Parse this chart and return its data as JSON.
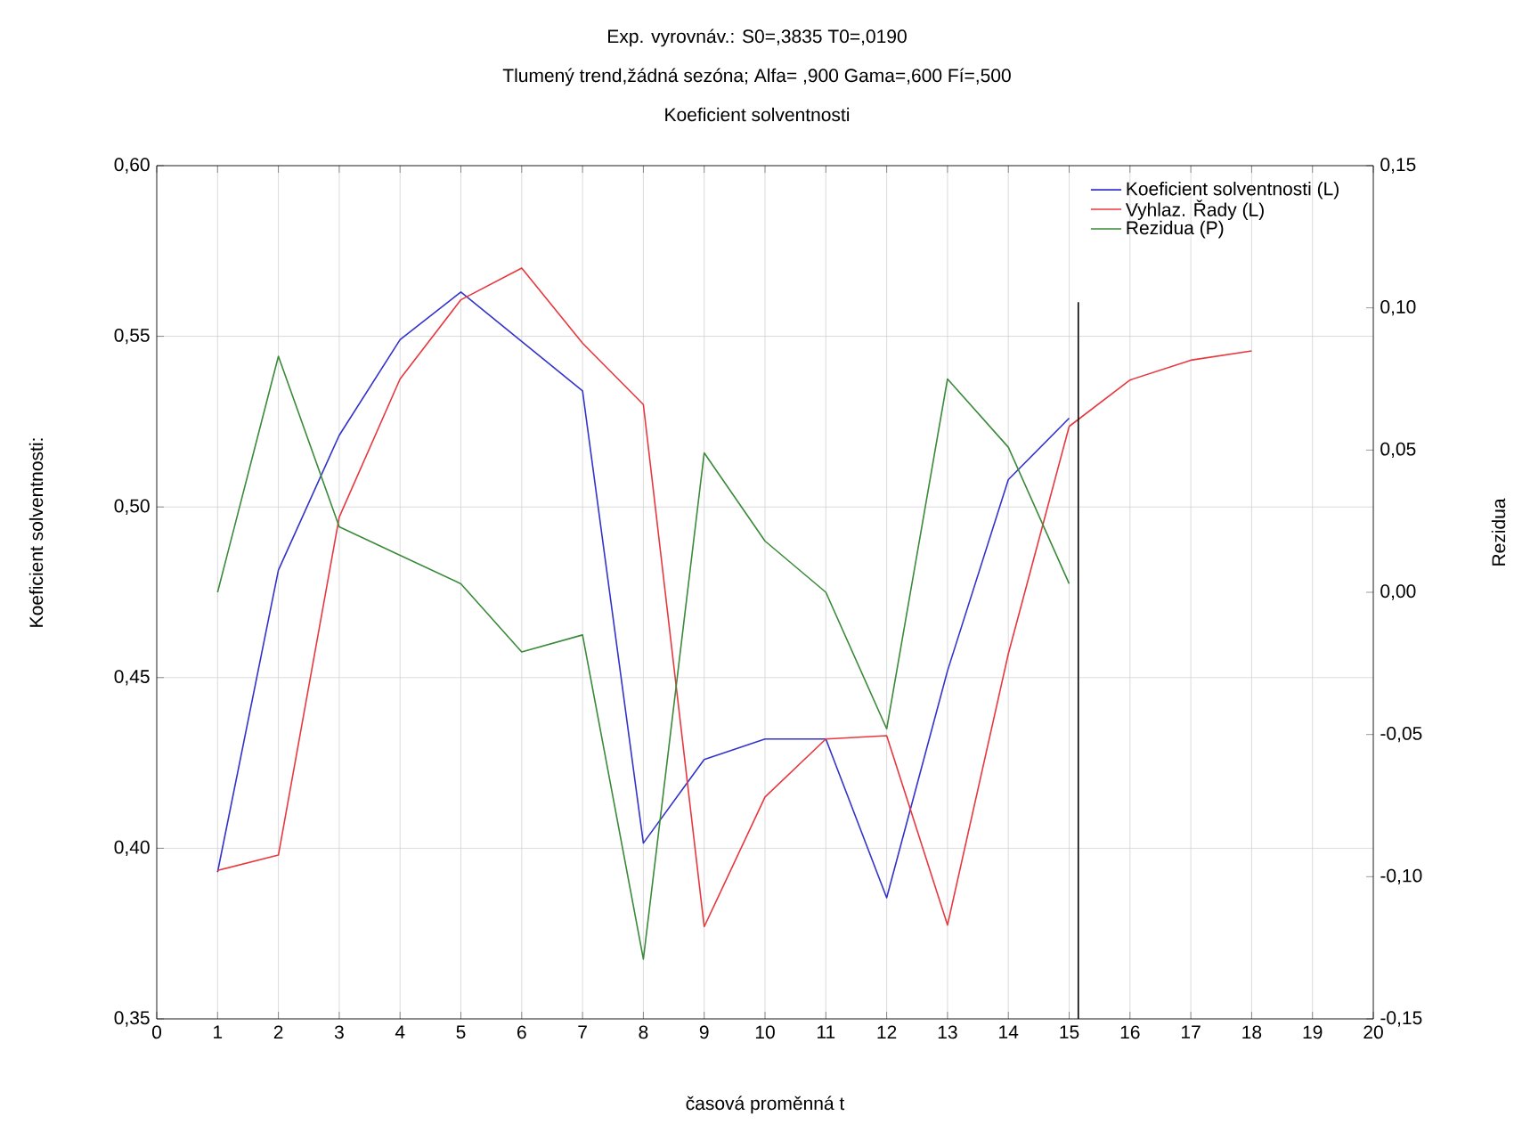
{
  "chart_data": {
    "type": "line",
    "title": "Exp. vyrovnáv.:  S0=,3835 T0=,0190",
    "subtitle": "Tlumený trend,žádná sezóna; Alfa=  ,900 Gama=,600 Fí=,500",
    "annotations": [
      "Koeficient solventnosti"
    ],
    "xlabel": "časová proměnná t",
    "ylabel": "Koeficient solventnosti:",
    "y2label": "Rezidua",
    "x": [
      1,
      2,
      3,
      4,
      5,
      6,
      7,
      8,
      9,
      10,
      11,
      12,
      13,
      14,
      15,
      16,
      17,
      18
    ],
    "series": [
      {
        "name": "Koeficient solventnosti (L)",
        "color": "#3333cc",
        "values": [
          0.393,
          0.4815,
          0.521,
          0.549,
          0.563,
          0.5485,
          0.534,
          0.4015,
          0.426,
          0.432,
          0.432,
          0.3855,
          0.452,
          0.508,
          0.526,
          null,
          null,
          null
        ]
      },
      {
        "name": "Vyhlaz. Řady (L)",
        "color": "#e8383f",
        "values": [
          0.3935,
          0.398,
          0.497,
          0.5375,
          0.5607,
          0.57,
          0.548,
          0.53,
          0.377,
          0.415,
          0.432,
          0.433,
          0.3775,
          0.457,
          0.5236,
          0.5372,
          0.543,
          0.5457
        ]
      },
      {
        "name": "Rezidua (P)",
        "color": "#3a8a3a",
        "axis": "y2",
        "values": [
          0.0,
          0.083,
          0.023,
          0.013,
          0.003,
          -0.021,
          -0.015,
          -0.129,
          0.049,
          0.018,
          0.0,
          -0.048,
          0.075,
          0.051,
          0.003,
          null,
          null,
          null
        ]
      }
    ],
    "xlim": [
      0,
      20
    ],
    "xticks": [
      0,
      1,
      2,
      3,
      4,
      5,
      6,
      7,
      8,
      9,
      10,
      11,
      12,
      13,
      14,
      15,
      16,
      17,
      18,
      19,
      20
    ],
    "ylim": [
      0.35,
      0.6
    ],
    "yticks": [
      {
        "value": 0.35,
        "label": "0,35"
      },
      {
        "value": 0.4,
        "label": "0,40"
      },
      {
        "value": 0.45,
        "label": "0,45"
      },
      {
        "value": 0.5,
        "label": "0,50"
      },
      {
        "value": 0.55,
        "label": "0,55"
      },
      {
        "value": 0.6,
        "label": "0,60"
      }
    ],
    "y2lim": [
      -0.15,
      0.15
    ],
    "y2ticks": [
      {
        "value": -0.15,
        "label": "-0,15"
      },
      {
        "value": -0.1,
        "label": "-0,10"
      },
      {
        "value": -0.05,
        "label": "-0,05"
      },
      {
        "value": 0.0,
        "label": "0,00"
      },
      {
        "value": 0.05,
        "label": "0,05"
      },
      {
        "value": 0.1,
        "label": "0,10"
      },
      {
        "value": 0.15,
        "label": "0,15"
      }
    ],
    "ref_lines": [
      {
        "axis": "x",
        "value": 15.15,
        "color": "#000000"
      }
    ],
    "grid": true,
    "legend": "top right",
    "marker": "none",
    "line_style": "solid"
  }
}
